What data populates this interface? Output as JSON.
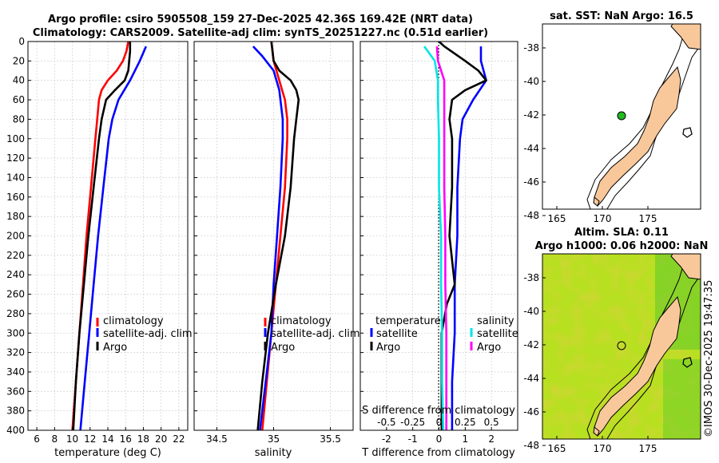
{
  "title": {
    "line1": "Argo profile: csiro 5905508_159 27-Dec-2025 42.36S 169.42E (NRT data)",
    "line2": "Climatology: CARS2009. Satellite-adj clim: synTS_20251227.nc (0.51d earlier)"
  },
  "watermark": "©IMOS 30-Dec-2025 19:47:35",
  "colors": {
    "climatology": "#ff0000",
    "satellite": "#0000ff",
    "argo": "#000000",
    "s_satellite": "#00e5e5",
    "s_argo": "#ff00ff",
    "land": "#f8c89b",
    "sst_dot": "#22bb22"
  },
  "chart_data": [
    {
      "id": "temperature",
      "type": "line",
      "xlabel": "temperature (deg C)",
      "ylabel": "",
      "xlim": [
        5,
        23
      ],
      "ylim": [
        0,
        400
      ],
      "xticks": [
        6,
        8,
        10,
        12,
        14,
        16,
        18,
        20,
        22
      ],
      "yticks": [
        0,
        20,
        40,
        60,
        80,
        100,
        120,
        140,
        160,
        180,
        200,
        220,
        240,
        260,
        280,
        300,
        320,
        340,
        360,
        380,
        400
      ],
      "legend": [
        "climatology",
        "satellite-adj. clim",
        "Argo"
      ],
      "series": [
        {
          "name": "climatology",
          "depth": [
            0,
            10,
            20,
            30,
            40,
            50,
            60,
            80,
            100,
            150,
            200,
            250,
            300,
            350,
            400
          ],
          "values": [
            16.3,
            16.1,
            15.7,
            15.0,
            14.0,
            13.3,
            13.0,
            12.8,
            12.6,
            12.1,
            11.6,
            11.2,
            10.8,
            10.4,
            10.0
          ]
        },
        {
          "name": "satellite-adj. clim",
          "depth": [
            5,
            20,
            40,
            60,
            80,
            100,
            150,
            200,
            250,
            300,
            350,
            400
          ],
          "values": [
            18.3,
            17.6,
            16.5,
            15.2,
            14.5,
            14.1,
            13.5,
            12.9,
            12.4,
            11.9,
            11.4,
            10.9
          ]
        },
        {
          "name": "Argo",
          "depth": [
            0,
            10,
            20,
            30,
            40,
            50,
            60,
            80,
            100,
            150,
            200,
            250,
            300,
            350,
            400
          ],
          "values": [
            16.5,
            16.5,
            16.4,
            16.3,
            15.9,
            14.8,
            13.8,
            13.3,
            13.0,
            12.4,
            11.8,
            11.3,
            10.8,
            10.4,
            10.1
          ]
        }
      ]
    },
    {
      "id": "salinity",
      "type": "line",
      "xlabel": "salinity",
      "ylabel": "",
      "xlim": [
        34.3,
        35.7
      ],
      "ylim": [
        0,
        400
      ],
      "xticks": [
        34.5,
        35,
        35.5
      ],
      "xticklabels": [
        "34.5",
        "35",
        "35.5"
      ],
      "legend": [
        "climatology",
        "satellite-adj. clim",
        "Argo"
      ],
      "series": [
        {
          "name": "climatology",
          "depth": [
            0,
            20,
            40,
            60,
            80,
            100,
            150,
            200,
            250,
            300,
            350,
            400
          ],
          "values": [
            34.98,
            35.0,
            35.05,
            35.1,
            35.12,
            35.12,
            35.1,
            35.06,
            35.02,
            34.98,
            34.94,
            34.9
          ]
        },
        {
          "name": "satellite-adj. clim",
          "depth": [
            5,
            15,
            30,
            50,
            80,
            100,
            150,
            200,
            250,
            300,
            350,
            400
          ],
          "values": [
            34.82,
            34.9,
            35.0,
            35.05,
            35.08,
            35.08,
            35.06,
            35.03,
            35.0,
            34.98,
            34.93,
            34.88
          ]
        },
        {
          "name": "Argo",
          "depth": [
            0,
            20,
            30,
            40,
            50,
            60,
            80,
            100,
            150,
            200,
            250,
            300,
            350,
            400
          ],
          "values": [
            34.98,
            35.0,
            35.05,
            35.15,
            35.2,
            35.22,
            35.2,
            35.18,
            35.15,
            35.1,
            35.02,
            34.95,
            34.9,
            34.86
          ]
        }
      ]
    },
    {
      "id": "difference",
      "type": "line",
      "xlabel": "T difference from climatology",
      "x2label": "S difference from climatology",
      "xlim": [
        -3,
        3
      ],
      "ylim": [
        0,
        400
      ],
      "xticks": [
        -2,
        -1,
        0,
        1,
        2
      ],
      "xticklabels": [
        "-2",
        "-1",
        "0",
        "1",
        "2"
      ],
      "x2ticks": [
        -0.5,
        -0.25,
        0,
        0.25,
        0.5
      ],
      "x2ticklabels": [
        "-0.5",
        "-0.25",
        "0",
        "0.25",
        "0.5"
      ],
      "legend_t_title": "temperature",
      "legend_s_title": "salinity",
      "legend": [
        "satellite",
        "Argo",
        "satellite",
        "Argo"
      ],
      "series": [
        {
          "name": "T satellite",
          "depth": [
            5,
            20,
            40,
            60,
            80,
            100,
            150,
            200,
            250,
            300,
            350,
            400
          ],
          "values": [
            1.6,
            1.6,
            1.8,
            1.3,
            0.9,
            0.8,
            0.7,
            0.7,
            0.6,
            0.6,
            0.5,
            0.5
          ]
        },
        {
          "name": "T Argo",
          "depth": [
            0,
            5,
            20,
            30,
            40,
            50,
            60,
            80,
            100,
            150,
            200,
            250,
            270,
            300,
            350,
            400
          ],
          "values": [
            0.0,
            0.2,
            1.0,
            1.5,
            1.8,
            1.0,
            0.5,
            0.4,
            0.5,
            0.5,
            0.4,
            0.6,
            0.3,
            0.1,
            0.1,
            0.1
          ]
        },
        {
          "name": "S satellite",
          "depth": [
            5,
            20,
            40,
            60,
            100,
            150,
            200,
            250,
            300,
            350,
            400
          ],
          "values": [
            -0.14,
            -0.04,
            -0.01,
            -0.01,
            0.0,
            0.0,
            0.02,
            0.02,
            0.03,
            0.03,
            0.04
          ]
        },
        {
          "name": "S Argo",
          "depth": [
            5,
            20,
            40,
            50,
            60,
            80,
            100,
            150,
            200,
            250,
            300,
            350,
            400
          ],
          "values": [
            -0.02,
            -0.01,
            0.05,
            0.05,
            0.05,
            0.05,
            0.05,
            0.05,
            0.06,
            0.06,
            0.07,
            0.07,
            0.07
          ]
        }
      ]
    }
  ],
  "maps": [
    {
      "id": "sst-map",
      "title": "sat. SST: NaN Argo: 16.5",
      "title2": "",
      "xticks": [
        "165",
        "170",
        "175"
      ],
      "yticks": [
        "-38",
        "-40",
        "-42",
        "-44",
        "-46",
        "-48"
      ]
    },
    {
      "id": "sla-map",
      "title": "Altim. SLA: 0.11",
      "title2": "Argo h1000: 0.06 h2000: NaN",
      "xticks": [
        "165",
        "170",
        "175"
      ],
      "yticks": [
        "-38",
        "-40",
        "-42",
        "-44",
        "-46",
        "-48"
      ]
    }
  ]
}
